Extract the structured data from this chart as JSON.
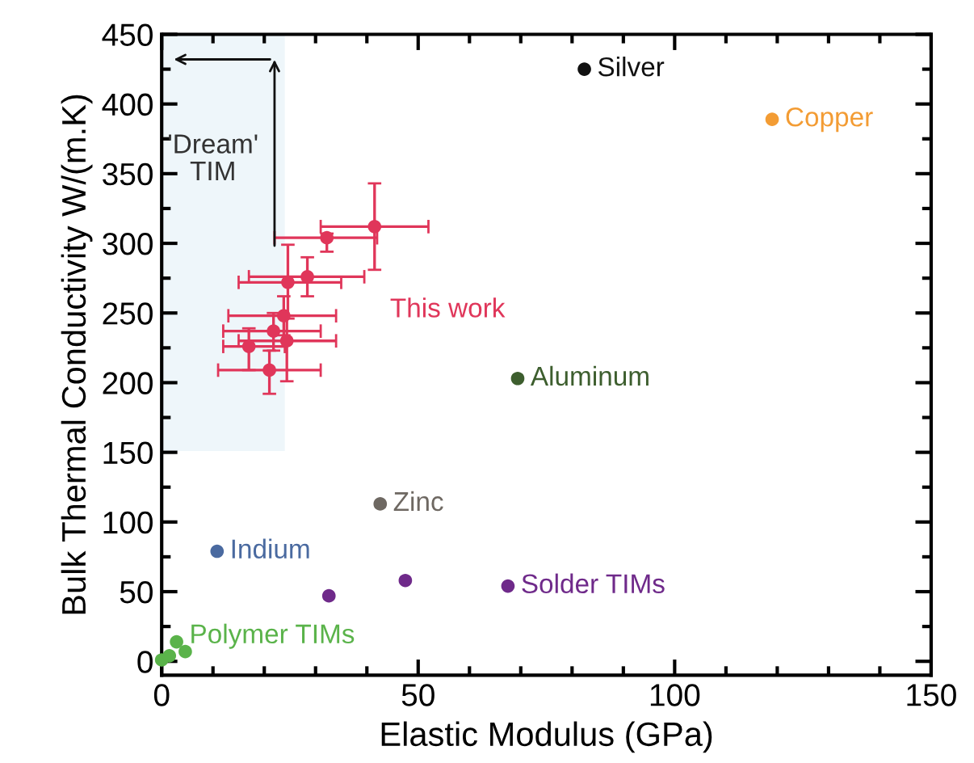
{
  "chart_data": {
    "type": "scatter",
    "xlabel": "Elastic Modulus (GPa)",
    "ylabel": "Bulk Thermal Conductivity W/(m.K)",
    "xlim": [
      0,
      150
    ],
    "ylim": [
      -10,
      450
    ],
    "xticks": [
      0,
      50,
      100,
      150
    ],
    "yticks": [
      0,
      50,
      100,
      150,
      200,
      250,
      300,
      350,
      400,
      450
    ],
    "grid": false,
    "marker": "circle",
    "bands": [
      {
        "axis": "x",
        "from": 0,
        "to": 24,
        "label": "'Dream'\nTIM",
        "color": "#eef6fa"
      }
    ],
    "series": [
      {
        "name": "This work",
        "color": "#e0365a",
        "x": [
          41.5,
          32.2,
          28.4,
          24.6,
          23.8,
          21.8,
          24.4,
          17,
          21
        ],
        "values": [
          312,
          304,
          276,
          272,
          248,
          237,
          230,
          226,
          209
        ],
        "xerrors": [
          [
            31,
            52
          ],
          [
            22,
            42
          ],
          [
            17,
            39.5
          ],
          [
            15,
            35
          ],
          [
            13,
            34
          ],
          [
            12,
            31
          ],
          [
            15,
            34
          ],
          [
            12,
            24
          ],
          [
            11,
            31
          ]
        ],
        "errors": [
          [
            281,
            343
          ],
          [
            294,
            307
          ],
          [
            262,
            290
          ],
          [
            246,
            299
          ],
          [
            234,
            262
          ],
          [
            223,
            250
          ],
          [
            201,
            248
          ],
          [
            209,
            239
          ],
          [
            192,
            223
          ]
        ]
      },
      {
        "name": "Silver",
        "color": "#111111",
        "x": [
          82.4
        ],
        "values": [
          425
        ]
      },
      {
        "name": "Copper",
        "color": "#f39c34",
        "x": [
          119
        ],
        "values": [
          389
        ]
      },
      {
        "name": "Aluminum",
        "color": "#3d5e2e",
        "x": [
          69.4
        ],
        "values": [
          203
        ]
      },
      {
        "name": "Zinc",
        "color": "#6e6862",
        "x": [
          42.6
        ],
        "values": [
          113
        ]
      },
      {
        "name": "Indium",
        "color": "#4a6aa0",
        "x": [
          10.8
        ],
        "values": [
          79
        ]
      },
      {
        "name": "Solder TIMs",
        "color": "#6f2a8a",
        "x": [
          32.6,
          47.5,
          67.5
        ],
        "values": [
          47,
          58,
          54
        ]
      },
      {
        "name": "Polymer TIMs",
        "color": "#5ab34a",
        "x": [
          0,
          1.5,
          2.9,
          4.6
        ],
        "values": [
          1,
          4,
          14,
          7
        ]
      }
    ]
  }
}
